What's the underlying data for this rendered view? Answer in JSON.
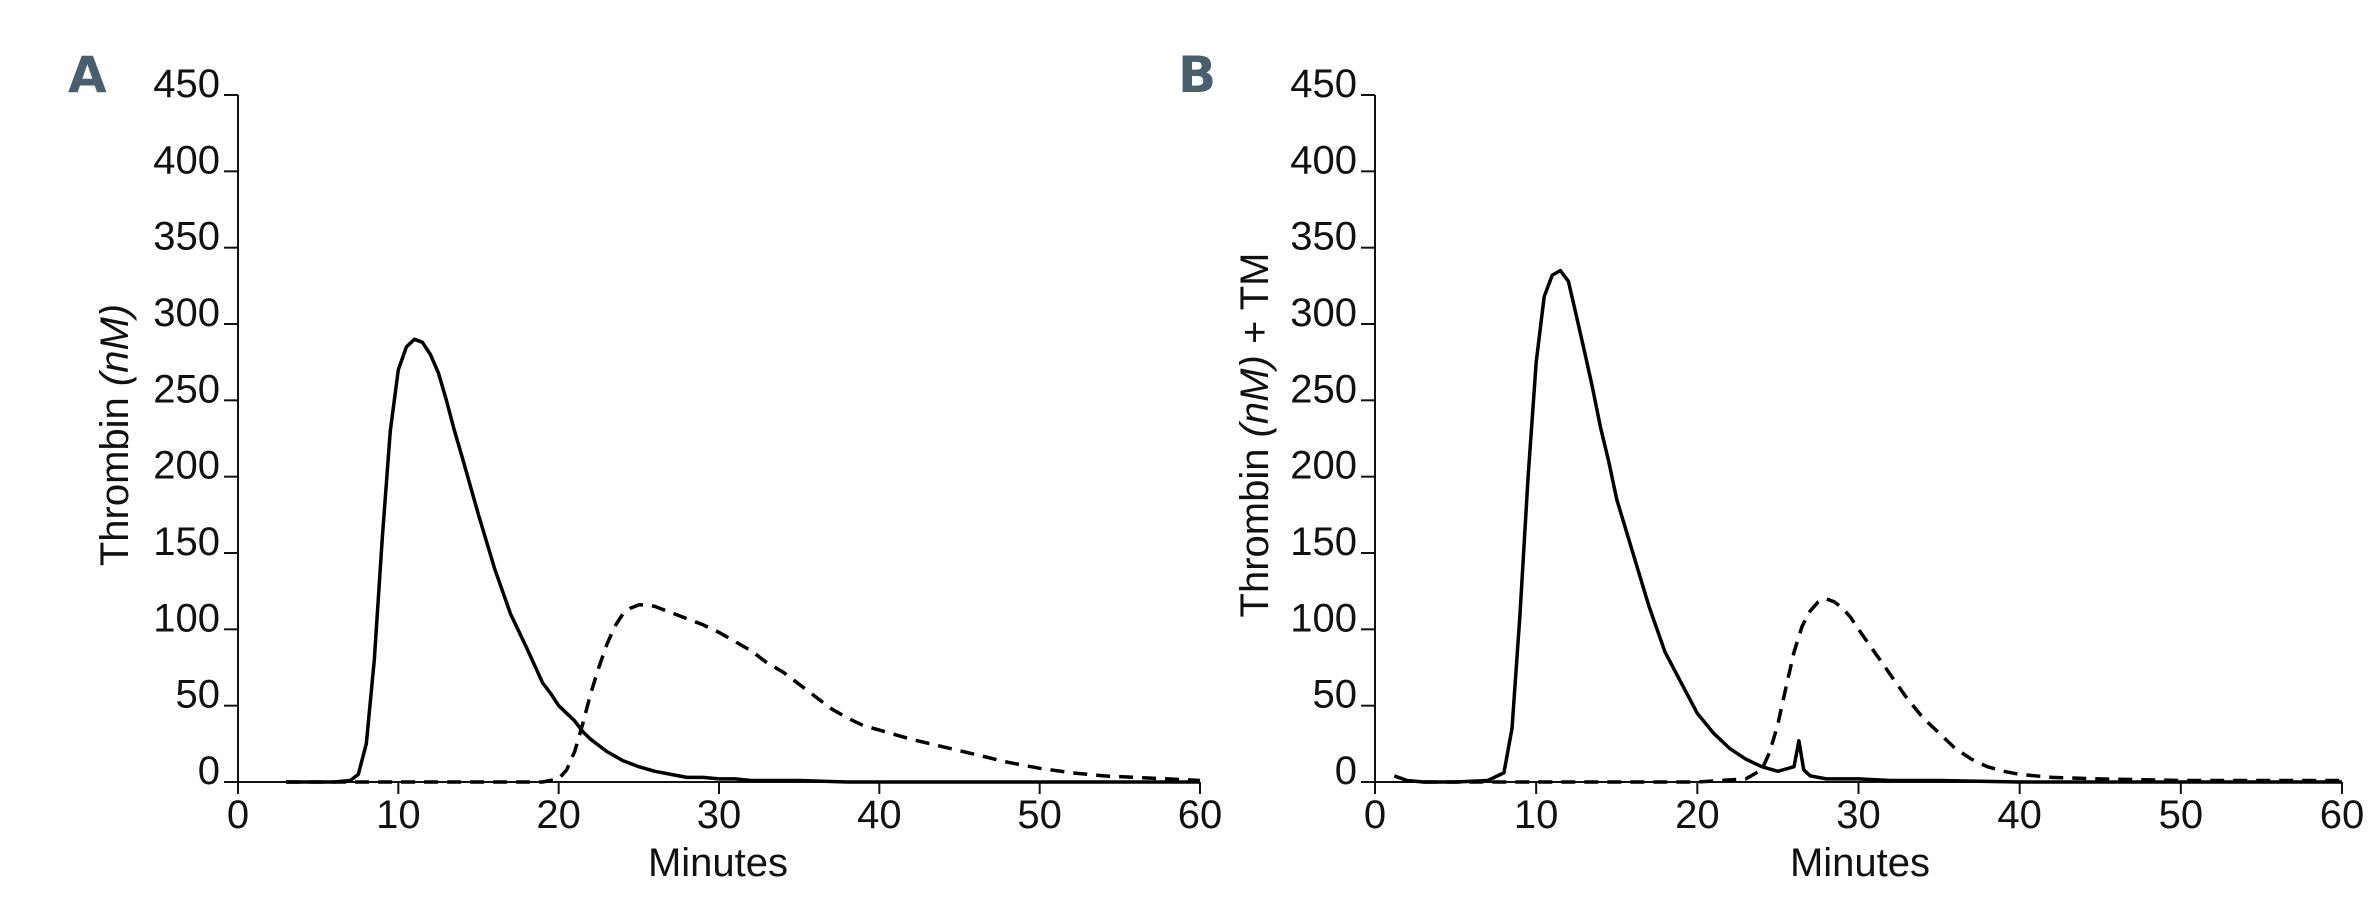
{
  "chart_data": [
    {
      "type": "line",
      "panel_label": "A",
      "xlabel": "Minutes",
      "ylabel_parts": [
        "Thrombin ",
        "(nM)",
        ""
      ],
      "xlim": [
        0,
        60
      ],
      "ylim": [
        0,
        450
      ],
      "xticks": [
        0,
        10,
        20,
        30,
        40,
        50,
        60
      ],
      "yticks": [
        0,
        50,
        100,
        150,
        200,
        250,
        300,
        350,
        400,
        450
      ],
      "grid": false,
      "series": [
        {
          "style": "solid",
          "x": [
            3,
            5,
            6,
            7,
            7.5,
            8,
            8.5,
            9,
            9.5,
            10,
            10.5,
            11,
            11.5,
            12,
            12.5,
            13,
            13.5,
            14,
            15,
            16,
            17,
            18,
            19,
            19.5,
            20,
            20.5,
            21,
            21.5,
            22,
            23,
            24,
            25,
            26,
            27,
            28,
            29,
            30,
            31,
            32,
            33,
            35,
            38,
            40,
            45,
            50,
            55,
            60
          ],
          "y": [
            0,
            0,
            0,
            1,
            5,
            25,
            80,
            160,
            230,
            270,
            285,
            290,
            288,
            280,
            268,
            250,
            230,
            212,
            175,
            140,
            110,
            88,
            65,
            58,
            50,
            45,
            40,
            33,
            28,
            20,
            14,
            10,
            7,
            5,
            3,
            3,
            2,
            2,
            1,
            1,
            1,
            0,
            0,
            0,
            0,
            0,
            0
          ]
        },
        {
          "style": "dashed",
          "x": [
            3,
            10,
            15,
            18,
            19,
            20,
            20.5,
            21,
            21.5,
            22,
            22.5,
            23,
            23.5,
            24,
            24.5,
            25,
            25.5,
            26,
            26.5,
            27,
            28,
            29,
            30,
            31,
            32,
            33,
            34,
            35,
            36,
            37,
            38,
            39,
            40,
            42,
            44,
            46,
            48,
            50,
            52,
            54,
            56,
            58,
            60
          ],
          "y": [
            0,
            0,
            0,
            0,
            0,
            2,
            8,
            20,
            38,
            58,
            75,
            90,
            102,
            110,
            114,
            116,
            116,
            115,
            113,
            111,
            107,
            103,
            98,
            92,
            86,
            78,
            72,
            64,
            56,
            48,
            42,
            37,
            34,
            28,
            23,
            18,
            13,
            9,
            6,
            4,
            3,
            2,
            1
          ]
        }
      ]
    },
    {
      "type": "line",
      "panel_label": "B",
      "xlabel": "Minutes",
      "ylabel_parts": [
        "Thrombin ",
        "(nM)",
        " + TM"
      ],
      "xlim": [
        0,
        60
      ],
      "ylim": [
        0,
        450
      ],
      "xticks": [
        0,
        10,
        20,
        30,
        40,
        50,
        60
      ],
      "yticks": [
        0,
        50,
        100,
        150,
        200,
        250,
        300,
        350,
        400,
        450
      ],
      "grid": false,
      "series": [
        {
          "style": "solid",
          "x": [
            1.2,
            2,
            3,
            5,
            7,
            8,
            8.5,
            9,
            9.5,
            10,
            10.5,
            11,
            11.5,
            12,
            12.5,
            13,
            13.5,
            14,
            14.5,
            15,
            16,
            17,
            18,
            19,
            20,
            21,
            22,
            23,
            24,
            25,
            26,
            26.3,
            26.6,
            27,
            28,
            30,
            32,
            35,
            40,
            45,
            50,
            55,
            60
          ],
          "y": [
            4,
            1,
            0,
            0,
            1,
            6,
            35,
            110,
            200,
            275,
            318,
            332,
            335,
            328,
            305,
            282,
            258,
            232,
            210,
            185,
            150,
            115,
            85,
            65,
            45,
            32,
            22,
            15,
            10,
            7,
            10,
            27,
            8,
            4,
            2,
            2,
            1,
            1,
            0,
            0,
            0,
            0,
            0
          ]
        },
        {
          "style": "dashed",
          "x": [
            3,
            10,
            20,
            23,
            24,
            24.5,
            25,
            25.5,
            26,
            26.5,
            27,
            27.5,
            28,
            28.5,
            29,
            29.5,
            30,
            31,
            32,
            33,
            34,
            35,
            36,
            37,
            38,
            39,
            40,
            42,
            45,
            50,
            55,
            60
          ],
          "y": [
            0,
            0,
            0,
            2,
            8,
            20,
            38,
            62,
            85,
            102,
            112,
            118,
            120,
            118,
            114,
            108,
            100,
            85,
            70,
            55,
            42,
            32,
            22,
            15,
            10,
            7,
            5,
            3,
            2,
            1,
            1,
            1
          ]
        }
      ]
    }
  ]
}
